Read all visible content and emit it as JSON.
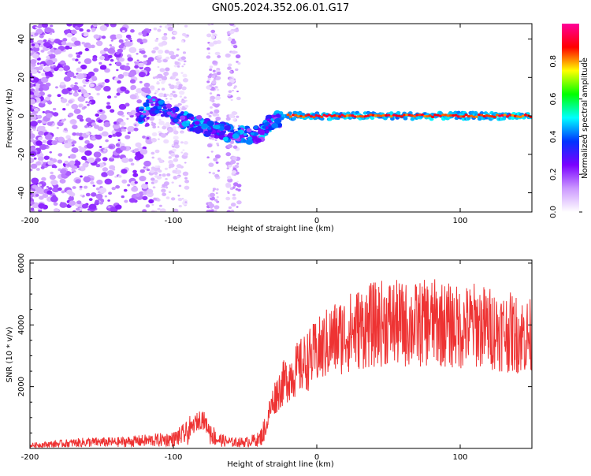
{
  "figure": {
    "title": "GN05.2024.352.06.01.G17"
  },
  "chart_data": [
    {
      "type": "heatmap",
      "title": "GN05.2024.352.06.01.G17",
      "xlabel": "Height of straight line (km)",
      "ylabel": "Frequency (Hz)",
      "xlim": [
        -200,
        150
      ],
      "ylim": [
        -50,
        48
      ],
      "xticks": [
        -200,
        -100,
        0,
        100
      ],
      "yticks": [
        -40,
        -20,
        0,
        20,
        40
      ],
      "colorbar": {
        "label": "Normalized spectral amplitude",
        "range": [
          0.0,
          1.0
        ],
        "ticks": [
          "0.0",
          "0.2",
          "0.4",
          "0.6",
          "0.8"
        ],
        "colors": [
          "#ffffff",
          "#cc99ff",
          "#7a00ff",
          "#0033ff",
          "#00ffff",
          "#00ff00",
          "#ffff00",
          "#ff0000",
          "#ff0099"
        ]
      },
      "ridge": [
        {
          "x": -120,
          "y": 7
        },
        {
          "x": -110,
          "y": 4
        },
        {
          "x": -100,
          "y": 0
        },
        {
          "x": -90,
          "y": -3
        },
        {
          "x": -80,
          "y": -5
        },
        {
          "x": -70,
          "y": -7
        },
        {
          "x": -60,
          "y": -9
        },
        {
          "x": -50,
          "y": -10
        },
        {
          "x": -40,
          "y": -10
        },
        {
          "x": -35,
          "y": -5
        },
        {
          "x": -30,
          "y": -3
        },
        {
          "x": -20,
          "y": 0
        },
        {
          "x": -10,
          "y": 1
        },
        {
          "x": 0,
          "y": 0
        },
        {
          "x": 50,
          "y": 0
        },
        {
          "x": 100,
          "y": 0
        },
        {
          "x": 150,
          "y": 0
        }
      ]
    },
    {
      "type": "line",
      "xlabel": "Height of straight line (km)",
      "ylabel": "SNR (10 * v/v)",
      "xlim": [
        -200,
        150
      ],
      "ylim": [
        0,
        6100
      ],
      "xticks": [
        -200,
        -100,
        0,
        100
      ],
      "yticks": [
        2000,
        4000,
        6000
      ],
      "color": "#ee3333",
      "series": [
        {
          "x": [
            -200,
            -180,
            -160,
            -140,
            -120,
            -100,
            -90,
            -85,
            -80,
            -75,
            -70,
            -60,
            -50,
            -40,
            -35,
            -33,
            -30,
            -25,
            -20,
            -15,
            -10,
            -5,
            0,
            5,
            10,
            20,
            30,
            40,
            50,
            60,
            70,
            80,
            90,
            100,
            110,
            120,
            130,
            140,
            150
          ],
          "values": [
            100,
            150,
            200,
            200,
            250,
            300,
            500,
            800,
            1000,
            600,
            300,
            200,
            200,
            300,
            700,
            1200,
            1600,
            2000,
            2300,
            2500,
            2700,
            2900,
            3100,
            3300,
            3500,
            3700,
            3900,
            4000,
            4100,
            4000,
            4000,
            4100,
            4000,
            3900,
            4000,
            3900,
            3800,
            3700,
            3600
          ]
        }
      ]
    }
  ]
}
